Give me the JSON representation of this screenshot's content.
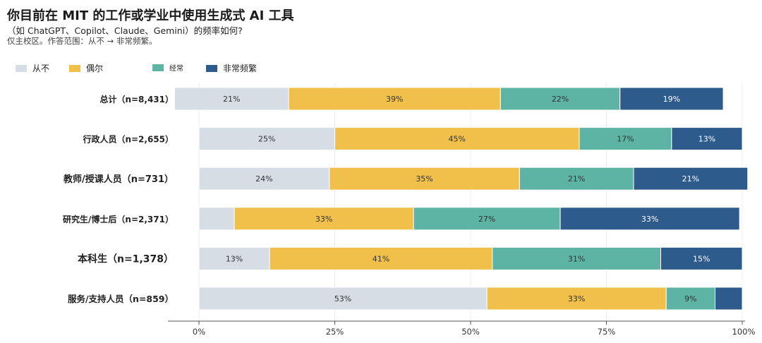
{
  "header": {
    "title": "你目前在 MIT 的工作或学业中使用生成式 AI 工具",
    "subtitle": "（如 ChatGPT、Copilot、Claude、Gemini）的频率如何?",
    "note": "仅主校区。作答范围：从不 → 非常频繁。"
  },
  "chart_data": {
    "type": "bar",
    "orientation": "horizontal",
    "stacked": true,
    "categories": [
      "总计（n=8,431）",
      "行政人员（n=2,655）",
      "教师/授课人员（n=731）",
      "研究生/博士后（n=2,371）",
      "本科生（n=1,378）",
      "服务/支持人员（n=859）"
    ],
    "series": [
      {
        "name": "从不",
        "color": "#d6dde5",
        "values": [
          21,
          25,
          24,
          6.5,
          13,
          53
        ],
        "labels": [
          "21%",
          "25%",
          "24%",
          "",
          "13%",
          "53%"
        ]
      },
      {
        "name": "偶尔",
        "color": "#f0c04a",
        "values": [
          39,
          45,
          35,
          33,
          41,
          33
        ],
        "labels": [
          "39%",
          "45%",
          "35%",
          "33%",
          "41%",
          "33%"
        ]
      },
      {
        "name": "经常",
        "color": "#5db4a4",
        "values": [
          22,
          17,
          21,
          27,
          31,
          9
        ],
        "labels": [
          "22%",
          "17%",
          "21%",
          "27%",
          "31%",
          "9%"
        ]
      },
      {
        "name": "非常频繁",
        "color": "#2d5b8c",
        "values": [
          19,
          13,
          21,
          33,
          15,
          5
        ],
        "labels": [
          "19%",
          "13%",
          "21%",
          "33%",
          "15%",
          ""
        ]
      }
    ],
    "offsets": [
      -4.5,
      0,
      0,
      0,
      0,
      0
    ],
    "xlim": [
      0,
      100
    ],
    "xticks": [
      "0%",
      "25%",
      "50%",
      "75%",
      "100%"
    ],
    "grid": true,
    "legend_position": "top-left"
  }
}
